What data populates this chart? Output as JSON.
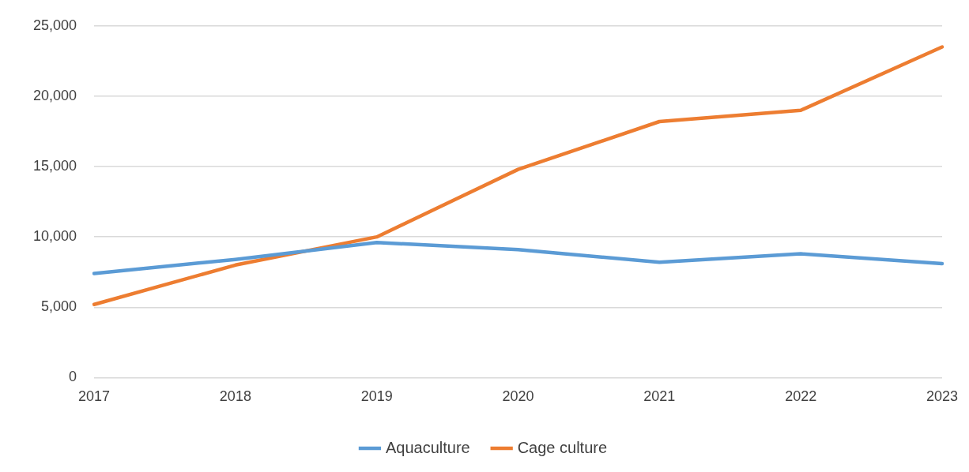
{
  "chart_data": {
    "type": "line",
    "categories": [
      "2017",
      "2018",
      "2019",
      "2020",
      "2021",
      "2022",
      "2023"
    ],
    "series": [
      {
        "name": "Aquaculture",
        "color": "#5b9bd5",
        "values": [
          7400,
          8400,
          9600,
          9100,
          8200,
          8800,
          8100
        ]
      },
      {
        "name": "Cage culture",
        "color": "#ed7d31",
        "values": [
          5200,
          8000,
          10000,
          14800,
          18200,
          19000,
          23500
        ]
      }
    ],
    "ylim": [
      0,
      25000
    ],
    "yticks": [
      {
        "value": 0,
        "label": "0"
      },
      {
        "value": 5000,
        "label": "5,000"
      },
      {
        "value": 10000,
        "label": "10,000"
      },
      {
        "value": 15000,
        "label": "15,000"
      },
      {
        "value": 20000,
        "label": "20,000"
      },
      {
        "value": 25000,
        "label": "25,000"
      }
    ],
    "grid": "y",
    "legend": "bottom",
    "marker": "none",
    "line_style": "solid"
  }
}
